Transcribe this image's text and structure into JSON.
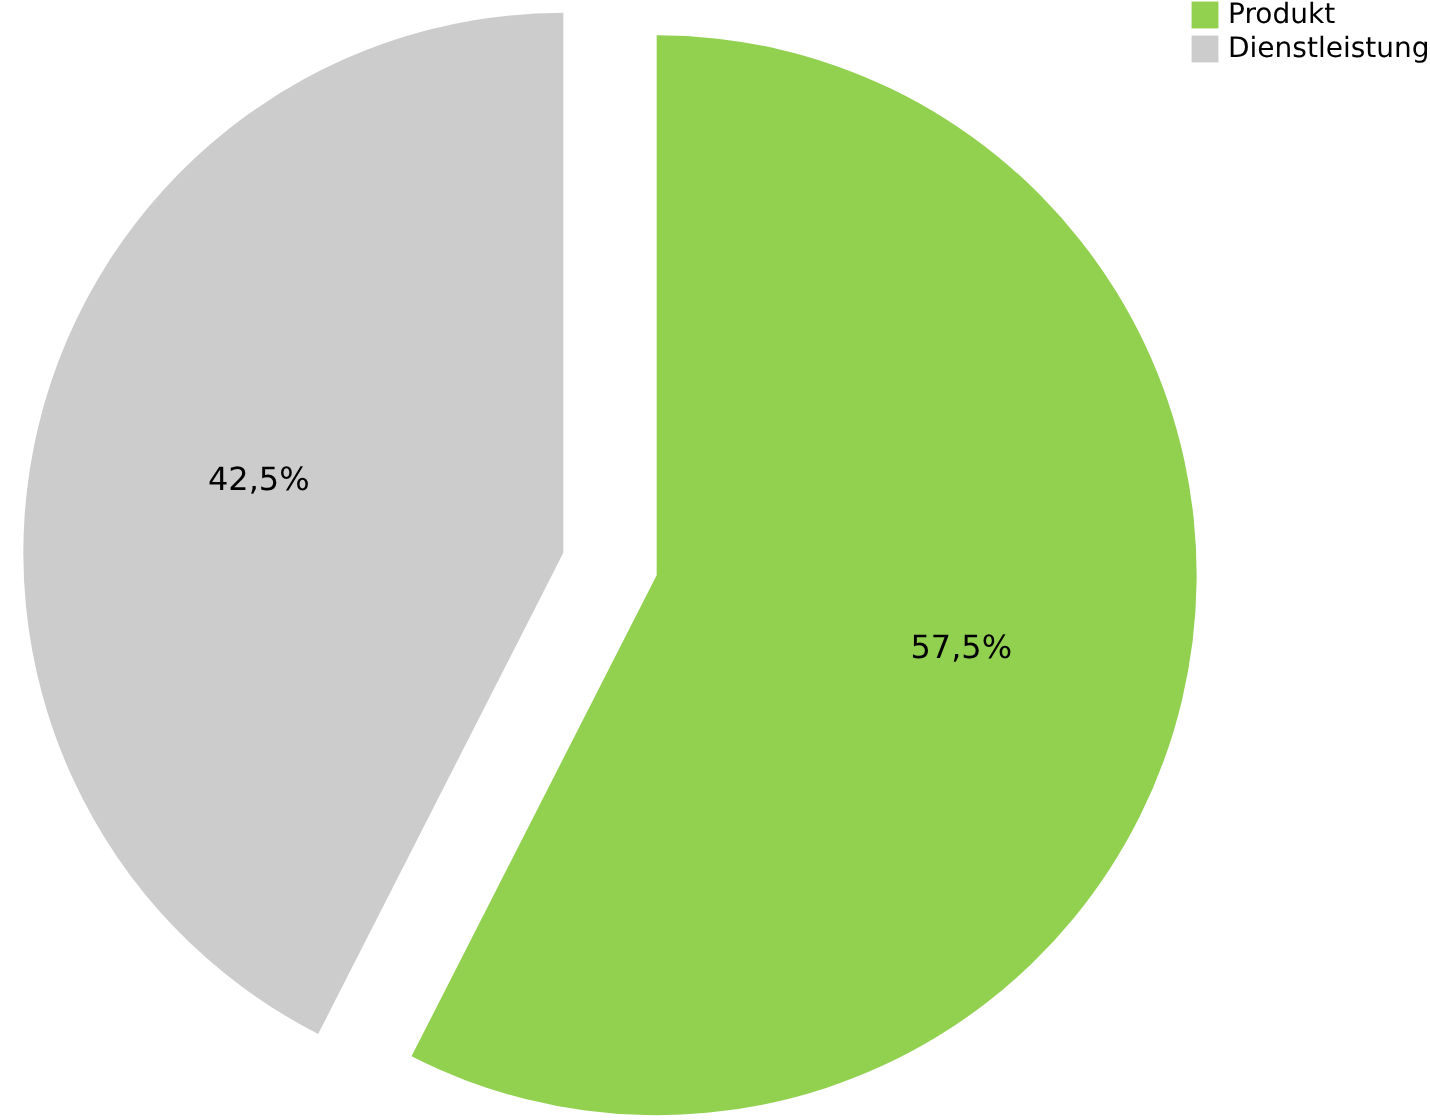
{
  "chart_data": {
    "type": "pie",
    "categories": [
      "Produkt",
      "Dienstleistung"
    ],
    "values": [
      57.5,
      42.5
    ],
    "colors": [
      "#92d050",
      "#cccccc"
    ],
    "value_labels": [
      "57,5%",
      "42,5%"
    ],
    "legend": "top right"
  }
}
